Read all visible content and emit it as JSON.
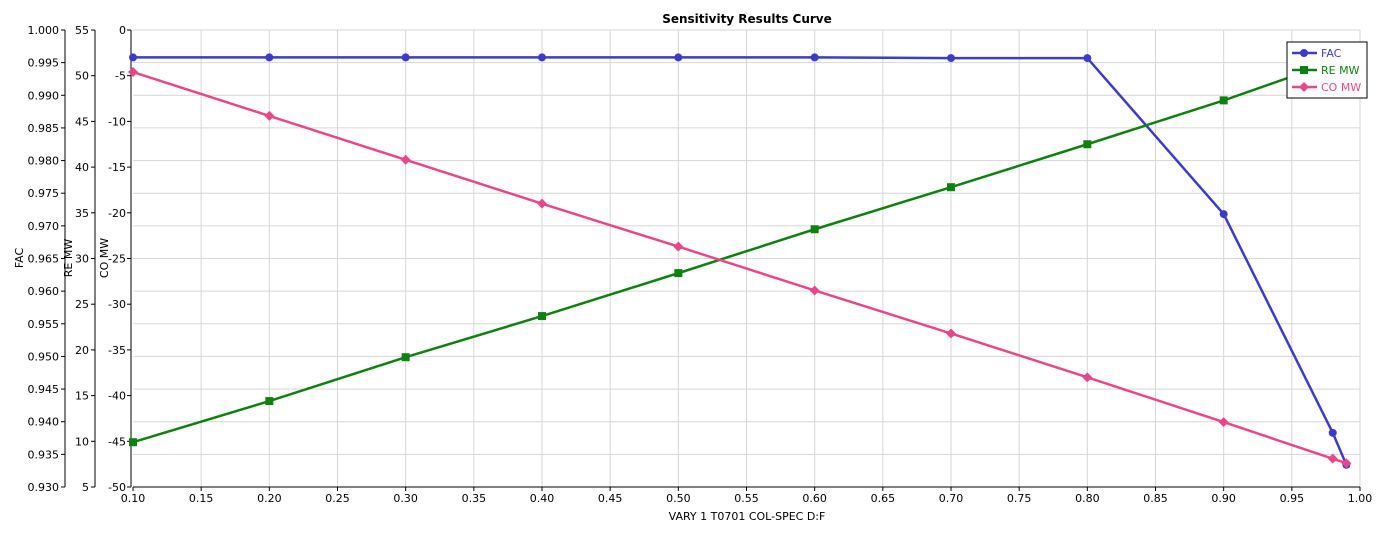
{
  "chart_data": {
    "type": "line",
    "title": "Sensitivity Results Curve",
    "xlabel": "VARY  1 T0701 COL-SPEC D:F",
    "xlim": [
      0.1,
      1.0
    ],
    "x_ticks": [
      "0.10",
      "0.15",
      "0.20",
      "0.25",
      "0.30",
      "0.35",
      "0.40",
      "0.45",
      "0.50",
      "0.55",
      "0.60",
      "0.65",
      "0.70",
      "0.75",
      "0.80",
      "0.85",
      "0.90",
      "0.95",
      "1.00"
    ],
    "grid": true,
    "legend_position": "top-right",
    "y_axes": [
      {
        "label": "FAC",
        "lim": [
          0.93,
          1.0
        ],
        "ticks": [
          "1.000",
          "0.995",
          "0.990",
          "0.985",
          "0.980",
          "0.975",
          "0.970",
          "0.965",
          "0.960",
          "0.955",
          "0.950",
          "0.945",
          "0.940",
          "0.935",
          "0.930"
        ]
      },
      {
        "label": "RE MW",
        "lim": [
          5,
          55
        ],
        "ticks": [
          "55",
          "50",
          "45",
          "40",
          "35",
          "30",
          "25",
          "20",
          "15",
          "10",
          "5"
        ]
      },
      {
        "label": "CO MW",
        "lim": [
          -50,
          0
        ],
        "ticks": [
          "0",
          "-5",
          "-10",
          "-15",
          "-20",
          "-25",
          "-30",
          "-35",
          "-40",
          "-45",
          "-50"
        ]
      }
    ],
    "series": [
      {
        "name": "FAC",
        "color": "#3c3cc8",
        "marker": "circle",
        "axis": 0,
        "x": [
          0.1,
          0.2,
          0.3,
          0.4,
          0.5,
          0.6,
          0.7,
          0.8,
          0.9,
          0.98,
          0.99
        ],
        "y": [
          0.9958,
          0.9958,
          0.9958,
          0.9958,
          0.9958,
          0.9958,
          0.9957,
          0.9957,
          0.9718,
          0.9383,
          0.9334
        ]
      },
      {
        "name": "RE MW",
        "color": "#108010",
        "marker": "square",
        "axis": 1,
        "x": [
          0.1,
          0.2,
          0.3,
          0.4,
          0.5,
          0.6,
          0.7,
          0.8,
          0.9,
          0.99
        ],
        "y": [
          9.9,
          14.4,
          19.2,
          23.7,
          28.4,
          33.2,
          37.8,
          42.5,
          47.3,
          52.0
        ]
      },
      {
        "name": "CO MW",
        "color": "#e8488a",
        "marker": "diamond",
        "axis": 2,
        "x": [
          0.1,
          0.2,
          0.3,
          0.4,
          0.5,
          0.6,
          0.7,
          0.8,
          0.9,
          0.98,
          0.99
        ],
        "y": [
          -4.6,
          -9.4,
          -14.2,
          -19.0,
          -23.7,
          -28.5,
          -33.2,
          -38.0,
          -42.9,
          -46.9,
          -47.4
        ]
      }
    ]
  }
}
